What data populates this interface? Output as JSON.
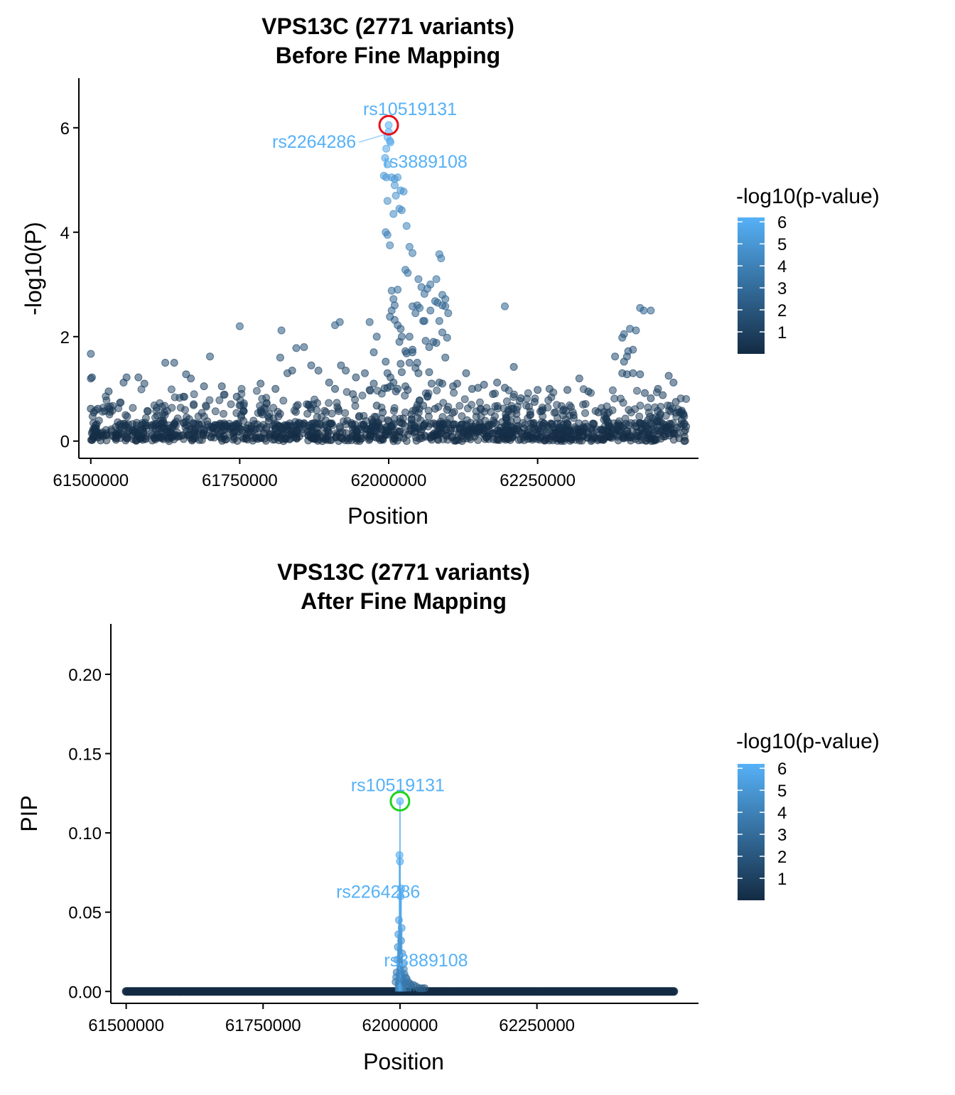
{
  "chart_data": [
    {
      "type": "scatter",
      "title": "VPS13C (2771 variants)",
      "subtitle": "Before Fine Mapping",
      "xlabel": "Position",
      "ylabel": "-log10(P)",
      "xlim": [
        61480000,
        62520000
      ],
      "ylim": [
        -0.33,
        6.95
      ],
      "xticks": [
        61500000,
        61750000,
        62000000,
        62250000
      ],
      "xtick_labels": [
        "61500000",
        "61750000",
        "62000000",
        "62250000"
      ],
      "yticks": [
        0,
        2,
        4,
        6
      ],
      "ytick_labels": [
        "0",
        "2",
        "4",
        "6"
      ],
      "legend": {
        "title": "-log10(p-value)",
        "placement": "right",
        "ticks": [
          1,
          2,
          3,
          4,
          5,
          6
        ],
        "tick_labels": [
          "1",
          "2",
          "3",
          "4",
          "5",
          "6"
        ],
        "color_low": "#132B43",
        "color_high": "#56B1F7"
      },
      "highlight": {
        "label": "rs10519131",
        "x": 62000000,
        "y": 6.05,
        "ring_color": "#e8101a"
      },
      "annotations": [
        {
          "label": "rs10519131",
          "x": 62000000,
          "y": 6.05
        },
        {
          "label": "rs2264286",
          "x": 61999000,
          "y": 5.9
        },
        {
          "label": "rs3889108",
          "x": 62002000,
          "y": 5.75
        }
      ],
      "points": [
        [
          61500000,
          0.62
        ],
        [
          61500000,
          1.67
        ],
        [
          61500000,
          1.2
        ],
        [
          61502000,
          1.22
        ],
        [
          61505000,
          0.55
        ],
        [
          61508000,
          0.3
        ],
        [
          61512000,
          0.62
        ],
        [
          61530000,
          0.95
        ],
        [
          61555000,
          1.12
        ],
        [
          61560000,
          1.22
        ],
        [
          61580000,
          1.22
        ],
        [
          61590000,
          1.1
        ],
        [
          61625000,
          1.5
        ],
        [
          61640000,
          1.5
        ],
        [
          61660000,
          1.28
        ],
        [
          61668000,
          1.2
        ],
        [
          61690000,
          1.05
        ],
        [
          61700000,
          1.62
        ],
        [
          61720000,
          1.05
        ],
        [
          61745000,
          0.85
        ],
        [
          61750000,
          2.2
        ],
        [
          61785000,
          1.1
        ],
        [
          61810000,
          1.0
        ],
        [
          61818000,
          1.6
        ],
        [
          61820000,
          2.12
        ],
        [
          61830000,
          1.3
        ],
        [
          61838000,
          1.35
        ],
        [
          61845000,
          1.78
        ],
        [
          61858000,
          1.8
        ],
        [
          61870000,
          1.45
        ],
        [
          61882000,
          1.35
        ],
        [
          61900000,
          1.12
        ],
        [
          61910000,
          1.0
        ],
        [
          61920000,
          1.45
        ],
        [
          61928000,
          1.35
        ],
        [
          61940000,
          0.9
        ],
        [
          61945000,
          1.22
        ],
        [
          61960000,
          1.3
        ],
        [
          61968000,
          0.98
        ],
        [
          61975000,
          1.1
        ],
        [
          61980000,
          0.68
        ],
        [
          61990000,
          0.55
        ],
        [
          61993000,
          1.01
        ],
        [
          61975000,
          1.7
        ],
        [
          61995000,
          1.52
        ],
        [
          61998000,
          1.3
        ],
        [
          61998000,
          1.02
        ],
        [
          62003000,
          1.05
        ],
        [
          62003000,
          1.22
        ],
        [
          62008000,
          1.12
        ],
        [
          62012000,
          0.95
        ],
        [
          62015000,
          1.0
        ],
        [
          62018000,
          1.9
        ],
        [
          62020000,
          1.48
        ],
        [
          62022000,
          1.32
        ],
        [
          62028000,
          1.05
        ],
        [
          62032000,
          0.98
        ],
        [
          62040000,
          1.75
        ],
        [
          62048000,
          1.5
        ],
        [
          62052000,
          0.78
        ],
        [
          62058000,
          0.68
        ],
        [
          62065000,
          0.85
        ],
        [
          62068000,
          1.32
        ],
        [
          62072000,
          1.1
        ],
        [
          62078000,
          0.62
        ],
        [
          62085000,
          1.12
        ],
        [
          62090000,
          1.1
        ],
        [
          62098000,
          0.6
        ],
        [
          62108000,
          1.05
        ],
        [
          62115000,
          1.1
        ],
        [
          62130000,
          1.3
        ],
        [
          62140000,
          1.0
        ],
        [
          62150000,
          1.02
        ],
        [
          62160000,
          1.08
        ],
        [
          62175000,
          0.9
        ],
        [
          62182000,
          1.12
        ],
        [
          62195000,
          1.02
        ],
        [
          62205000,
          0.38
        ],
        [
          62210000,
          1.42
        ],
        [
          62222000,
          0.82
        ],
        [
          62245000,
          0.75
        ],
        [
          62250000,
          0.98
        ],
        [
          62270000,
          1.0
        ],
        [
          62300000,
          0.98
        ],
        [
          62320000,
          1.2
        ],
        [
          62335000,
          0.95
        ],
        [
          62352000,
          0.55
        ],
        [
          62365000,
          0.42
        ],
        [
          62375000,
          0.22
        ],
        [
          62392000,
          1.3
        ],
        [
          62400000,
          1.28
        ],
        [
          62410000,
          1.3
        ],
        [
          62422000,
          1.28
        ],
        [
          62430000,
          0.92
        ],
        [
          62440000,
          0.82
        ],
        [
          62452000,
          1.0
        ],
        [
          62460000,
          0.88
        ],
        [
          62470000,
          1.25
        ],
        [
          62478000,
          1.12
        ],
        [
          62482000,
          0.75
        ],
        [
          62488000,
          0.55
        ],
        [
          62492000,
          0.4
        ],
        [
          62000000,
          6.05
        ],
        [
          62000000,
          5.92
        ],
        [
          61998000,
          5.82
        ],
        [
          62002000,
          5.75
        ],
        [
          62003000,
          5.72
        ],
        [
          61996000,
          5.6
        ],
        [
          61994000,
          5.42
        ],
        [
          61998000,
          5.3
        ],
        [
          61992000,
          5.08
        ],
        [
          61996000,
          5.05
        ],
        [
          62005000,
          5.05
        ],
        [
          62010000,
          5.02
        ],
        [
          62015000,
          5.05
        ],
        [
          62010000,
          4.9
        ],
        [
          62020000,
          4.8
        ],
        [
          62025000,
          4.78
        ],
        [
          61998000,
          4.6
        ],
        [
          62012000,
          4.7
        ],
        [
          62018000,
          4.45
        ],
        [
          62022000,
          4.42
        ],
        [
          62008000,
          4.35
        ],
        [
          62030000,
          4.12
        ],
        [
          61995000,
          4.0
        ],
        [
          61998000,
          3.95
        ],
        [
          62002000,
          3.75
        ],
        [
          62035000,
          3.72
        ],
        [
          62040000,
          3.6
        ],
        [
          62028000,
          3.28
        ],
        [
          62032000,
          3.22
        ],
        [
          62050000,
          3.1
        ],
        [
          62055000,
          2.95
        ],
        [
          62060000,
          2.82
        ],
        [
          62065000,
          2.92
        ],
        [
          62085000,
          3.58
        ],
        [
          62088000,
          3.5
        ],
        [
          62080000,
          3.1
        ],
        [
          62070000,
          3.0
        ],
        [
          62090000,
          2.8
        ],
        [
          62095000,
          2.72
        ],
        [
          62048000,
          2.6
        ],
        [
          62052000,
          2.55
        ],
        [
          62040000,
          2.58
        ],
        [
          62045000,
          2.45
        ],
        [
          62005000,
          2.88
        ],
        [
          62008000,
          2.72
        ],
        [
          62010000,
          2.6
        ],
        [
          62015000,
          2.9
        ],
        [
          62005000,
          2.5
        ],
        [
          62002000,
          2.38
        ],
        [
          62010000,
          2.32
        ],
        [
          62015000,
          2.22
        ],
        [
          62020000,
          2.15
        ],
        [
          62022000,
          2.0
        ],
        [
          62035000,
          2.0
        ],
        [
          62058000,
          2.3
        ],
        [
          62062000,
          1.92
        ],
        [
          62068000,
          1.8
        ],
        [
          62075000,
          1.9
        ],
        [
          62080000,
          1.88
        ],
        [
          62095000,
          1.6
        ],
        [
          62078000,
          2.68
        ],
        [
          62082000,
          2.65
        ],
        [
          62090000,
          2.6
        ],
        [
          62095000,
          2.58
        ],
        [
          62100000,
          2.45
        ],
        [
          62060000,
          2.3
        ],
        [
          62070000,
          2.5
        ],
        [
          62085000,
          2.3
        ],
        [
          62195000,
          2.58
        ],
        [
          61968000,
          2.28
        ],
        [
          61980000,
          2.0
        ],
        [
          61910000,
          2.22
        ],
        [
          61918000,
          2.28
        ],
        [
          62090000,
          2.08
        ],
        [
          62098000,
          1.98
        ],
        [
          62028000,
          1.72
        ],
        [
          62030000,
          1.68
        ],
        [
          62035000,
          1.5
        ],
        [
          62040000,
          1.7
        ],
        [
          62045000,
          1.4
        ],
        [
          62050000,
          1.3
        ],
        [
          62422000,
          2.55
        ],
        [
          62428000,
          2.5
        ],
        [
          62440000,
          2.5
        ],
        [
          62405000,
          2.15
        ],
        [
          62395000,
          2.05
        ],
        [
          62392000,
          1.98
        ],
        [
          62415000,
          2.12
        ],
        [
          62400000,
          1.62
        ],
        [
          62402000,
          1.72
        ],
        [
          62410000,
          1.75
        ],
        [
          62380000,
          1.62
        ],
        [
          62395000,
          1.52
        ]
      ]
    },
    {
      "type": "scatter",
      "title": "VPS13C (2771 variants)",
      "subtitle": "After Fine Mapping",
      "xlabel": "Position",
      "ylabel": "PIP",
      "xlim": [
        61472000,
        62545000
      ],
      "ylim": [
        -0.0075,
        0.2318
      ],
      "xticks": [
        61500000,
        61750000,
        62000000,
        62250000
      ],
      "xtick_labels": [
        "61500000",
        "61750000",
        "62000000",
        "62250000"
      ],
      "yticks": [
        0,
        0.05,
        0.1,
        0.15,
        0.2
      ],
      "ytick_labels": [
        "0.00",
        "0.05",
        "0.10",
        "0.15",
        "0.20"
      ],
      "legend": {
        "title": "-log10(p-value)",
        "placement": "right",
        "ticks": [
          1,
          2,
          3,
          4,
          5,
          6
        ],
        "tick_labels": [
          "1",
          "2",
          "3",
          "4",
          "5",
          "6"
        ],
        "color_low": "#132B43",
        "color_high": "#56B1F7"
      },
      "highlight": {
        "label": "rs10519131",
        "x": 62000000,
        "y": 0.12,
        "ring_color": "#22d21e"
      },
      "annotations": [
        {
          "label": "rs10519131",
          "x": 62000000,
          "y": 0.12
        },
        {
          "label": "rs2264286",
          "x": 61999000,
          "y": 0.086
        },
        {
          "label": "rs3889108",
          "x": 62002000,
          "y": 0.065
        }
      ],
      "points": [
        [
          62000000,
          0.12,
          6.05
        ],
        [
          61999000,
          0.086,
          5.9
        ],
        [
          62000000,
          0.082,
          5.8
        ],
        [
          62002000,
          0.065,
          5.75
        ],
        [
          62001000,
          0.06,
          5.7
        ],
        [
          61998000,
          0.045,
          5.5
        ],
        [
          62003000,
          0.04,
          5.4
        ],
        [
          61997000,
          0.036,
          5.2
        ],
        [
          62002000,
          0.032,
          5.0
        ],
        [
          61996000,
          0.028,
          5.0
        ],
        [
          62004000,
          0.024,
          4.8
        ],
        [
          61995000,
          0.02,
          4.6
        ],
        [
          62005000,
          0.017,
          4.5
        ],
        [
          62007000,
          0.014,
          4.4
        ],
        [
          61994000,
          0.012,
          4.0
        ],
        [
          62008000,
          0.011,
          4.0
        ],
        [
          62010000,
          0.009,
          3.7
        ],
        [
          62012000,
          0.008,
          3.6
        ],
        [
          62015000,
          0.006,
          3.5
        ],
        [
          62018000,
          0.005,
          3.3
        ],
        [
          62020000,
          0.004,
          3.2
        ],
        [
          62025000,
          0.004,
          3.0
        ],
        [
          62030000,
          0.003,
          2.8
        ],
        [
          62035000,
          0.002,
          2.6
        ],
        [
          62040000,
          0.002,
          2.4
        ],
        [
          62045000,
          0.002,
          2.2
        ],
        [
          61992000,
          0.006,
          3.8
        ],
        [
          61993000,
          0.009,
          4.2
        ],
        [
          62006000,
          0.007,
          3.9
        ],
        [
          62009000,
          0.005,
          3.4
        ]
      ],
      "baseline": {
        "y": 0,
        "x_from": 61500000,
        "x_to": 62500000
      }
    }
  ]
}
